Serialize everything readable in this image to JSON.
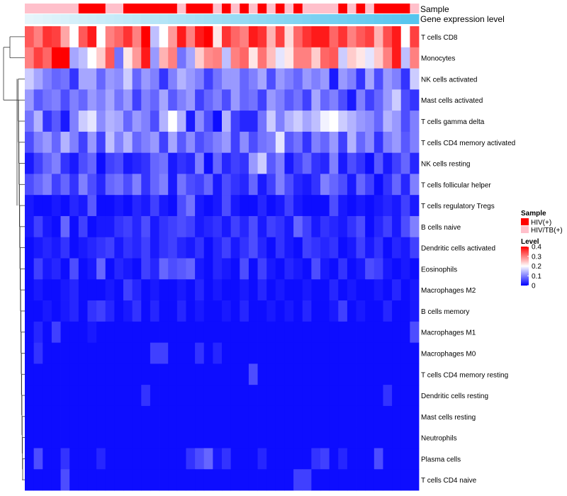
{
  "chart_data": {
    "type": "heatmap",
    "title": "",
    "xlabel": "",
    "ylabel": "",
    "annotation_tracks": [
      {
        "label": "Sample",
        "type": "categorical"
      },
      {
        "label": "Gene expression level",
        "type": "continuous"
      }
    ],
    "sample_groups": [
      "HIV/TB(+)",
      "HIV/TB(+)",
      "HIV/TB(+)",
      "HIV/TB(+)",
      "HIV/TB(+)",
      "HIV/TB(+)",
      "HIV(+)",
      "HIV(+)",
      "HIV(+)",
      "HIV/TB(+)",
      "HIV/TB(+)",
      "HIV(+)",
      "HIV(+)",
      "HIV(+)",
      "HIV(+)",
      "HIV(+)",
      "HIV(+)",
      "HIV/TB(+)",
      "HIV(+)",
      "HIV(+)",
      "HIV(+)",
      "HIV/TB(+)",
      "HIV(+)",
      "HIV/TB(+)",
      "HIV(+)",
      "HIV/TB(+)",
      "HIV(+)",
      "HIV/TB(+)",
      "HIV(+)",
      "HIV/TB(+)",
      "HIV(+)",
      "HIV/TB(+)",
      "HIV/TB(+)",
      "HIV/TB(+)",
      "HIV/TB(+)",
      "HIV(+)",
      "HIV/TB(+)",
      "HIV(+)",
      "HIV/TB(+)",
      "HIV(+)",
      "HIV(+)",
      "HIV(+)",
      "HIV(+)",
      "HIV/TB(+)"
    ],
    "rows": [
      "T cells CD8",
      "Monocytes",
      "NK cells activated",
      "Mast cells activated",
      "T cells gamma delta",
      "T cells CD4 memory activated",
      "NK cells resting",
      "T cells follicular helper",
      "T cells regulatory  Tregs",
      "B cells naive",
      "Dendritic cells activated",
      "Eosinophils",
      "Macrophages M2",
      "B cells memory",
      "Macrophages M1",
      "Macrophages M0",
      "T cells CD4 memory resting",
      "Dendritic cells resting",
      "Mast cells resting",
      "Neutrophils",
      "Plasma cells",
      "T cells CD4 naive"
    ],
    "values": [
      [
        0.33,
        0.3,
        0.36,
        0.35,
        0.27,
        0.2,
        0.33,
        0.38,
        0.2,
        0.3,
        0.32,
        0.36,
        0.3,
        0.4,
        0.15,
        0.2,
        0.28,
        0.38,
        0.3,
        0.38,
        0.4,
        0.22,
        0.36,
        0.32,
        0.3,
        0.38,
        0.36,
        0.26,
        0.35,
        0.23,
        0.32,
        0.36,
        0.38,
        0.38,
        0.32,
        0.36,
        0.3,
        0.33,
        0.35,
        0.26,
        0.34,
        0.38,
        0.2,
        0.35
      ],
      [
        0.3,
        0.35,
        0.32,
        0.4,
        0.4,
        0.13,
        0.15,
        0.2,
        0.24,
        0.33,
        0.09,
        0.22,
        0.28,
        0.38,
        0.12,
        0.26,
        0.3,
        0.09,
        0.13,
        0.24,
        0.29,
        0.3,
        0.15,
        0.3,
        0.32,
        0.22,
        0.31,
        0.25,
        0.18,
        0.22,
        0.3,
        0.3,
        0.24,
        0.32,
        0.33,
        0.16,
        0.24,
        0.22,
        0.18,
        0.24,
        0.3,
        0.38,
        0.15,
        0.3
      ],
      [
        0.16,
        0.13,
        0.1,
        0.08,
        0.09,
        0.04,
        0.13,
        0.13,
        0.08,
        0.12,
        0.11,
        0.16,
        0.08,
        0.12,
        0.1,
        0.04,
        0.1,
        0.14,
        0.12,
        0.1,
        0.05,
        0.09,
        0.12,
        0.12,
        0.08,
        0.1,
        0.13,
        0.06,
        0.12,
        0.1,
        0.08,
        0.12,
        0.1,
        0.12,
        0.02,
        0.12,
        0.1,
        0.04,
        0.13,
        0.06,
        0.12,
        0.1,
        0.04,
        0.16
      ],
      [
        0.12,
        0.07,
        0.09,
        0.1,
        0.06,
        0.1,
        0.08,
        0.12,
        0.1,
        0.13,
        0.09,
        0.12,
        0.05,
        0.1,
        0.08,
        0.13,
        0.07,
        0.1,
        0.12,
        0.05,
        0.08,
        0.1,
        0.06,
        0.12,
        0.08,
        0.09,
        0.05,
        0.12,
        0.1,
        0.07,
        0.09,
        0.05,
        0.13,
        0.08,
        0.1,
        0.06,
        0.02,
        0.1,
        0.05,
        0.08,
        0.12,
        0.16,
        0.06,
        0.04
      ],
      [
        0.09,
        0.14,
        0.04,
        0.07,
        0.02,
        0.1,
        0.16,
        0.18,
        0.11,
        0.14,
        0.13,
        0.08,
        0.12,
        0.1,
        0.06,
        0.14,
        0.2,
        0.14,
        0.02,
        0.11,
        0.06,
        0.01,
        0.14,
        0.05,
        0.03,
        0.03,
        0.09,
        0.16,
        0.1,
        0.14,
        0.16,
        0.13,
        0.15,
        0.19,
        0.2,
        0.16,
        0.14,
        0.12,
        0.11,
        0.08,
        0.14,
        0.12,
        0.06,
        0.1
      ],
      [
        0.06,
        0.1,
        0.12,
        0.08,
        0.14,
        0.1,
        0.05,
        0.12,
        0.05,
        0.15,
        0.1,
        0.14,
        0.08,
        0.1,
        0.12,
        0.05,
        0.13,
        0.07,
        0.11,
        0.06,
        0.08,
        0.1,
        0.12,
        0.05,
        0.11,
        0.06,
        0.09,
        0.1,
        0.18,
        0.07,
        0.09,
        0.04,
        0.1,
        0.08,
        0.12,
        0.05,
        0.14,
        0.08,
        0.11,
        0.04,
        0.1,
        0.12,
        0.07,
        0.1
      ],
      [
        0.02,
        0.05,
        0.08,
        0.1,
        0.04,
        0.02,
        0.06,
        0.08,
        0.01,
        0.05,
        0.06,
        0.02,
        0.03,
        0.04,
        0.08,
        0.09,
        0.02,
        0.04,
        0.03,
        0.1,
        0.01,
        0.08,
        0.03,
        0.05,
        0.04,
        0.12,
        0.16,
        0.07,
        0.1,
        0.02,
        0.05,
        0.08,
        0.04,
        0.03,
        0.1,
        0.02,
        0.06,
        0.04,
        0.01,
        0.07,
        0.02,
        0.05,
        0.08,
        0.03
      ],
      [
        0.06,
        0.08,
        0.1,
        0.05,
        0.08,
        0.04,
        0.1,
        0.06,
        0.03,
        0.08,
        0.09,
        0.06,
        0.1,
        0.04,
        0.08,
        0.1,
        0.02,
        0.09,
        0.06,
        0.05,
        0.08,
        0.02,
        0.06,
        0.04,
        0.03,
        0.08,
        0.02,
        0.05,
        0.1,
        0.06,
        0.03,
        0.02,
        0.04,
        0.1,
        0.08,
        0.06,
        0.02,
        0.08,
        0.05,
        0.01,
        0.04,
        0.08,
        0.03,
        0.1
      ],
      [
        0.02,
        0.01,
        0.01,
        0.02,
        0.01,
        0.03,
        0.02,
        0.07,
        0.01,
        0.01,
        0.02,
        0.01,
        0.03,
        0.02,
        0.05,
        0.02,
        0.01,
        0.06,
        0.09,
        0.02,
        0.01,
        0.02,
        0.06,
        0.02,
        0.01,
        0.01,
        0.03,
        0.01,
        0.02,
        0.05,
        0.02,
        0.01,
        0.01,
        0.01,
        0.06,
        0.02,
        0.01,
        0.02,
        0.01,
        0.02,
        0.03,
        0.02,
        0.05,
        0.02
      ],
      [
        0.02,
        0.05,
        0.02,
        0.01,
        0.08,
        0.01,
        0.05,
        0.01,
        0.02,
        0.02,
        0.04,
        0.05,
        0.03,
        0.06,
        0.02,
        0.04,
        0.05,
        0.06,
        0.05,
        0.02,
        0.03,
        0.04,
        0.02,
        0.05,
        0.03,
        0.06,
        0.02,
        0.05,
        0.04,
        0.02,
        0.08,
        0.05,
        0.02,
        0.04,
        0.03,
        0.02,
        0.04,
        0.06,
        0.01,
        0.03,
        0.05,
        0.02,
        0.06,
        0.1
      ],
      [
        0.01,
        0.02,
        0.03,
        0.02,
        0.04,
        0.01,
        0.02,
        0.03,
        0.04,
        0.05,
        0.02,
        0.04,
        0.03,
        0.05,
        0.02,
        0.04,
        0.05,
        0.03,
        0.02,
        0.04,
        0.01,
        0.03,
        0.05,
        0.02,
        0.04,
        0.06,
        0.03,
        0.01,
        0.04,
        0.02,
        0.01,
        0.05,
        0.04,
        0.03,
        0.04,
        0.01,
        0.02,
        0.05,
        0.02,
        0.04,
        0.01,
        0.03,
        0.02,
        0.05
      ],
      [
        0.01,
        0.05,
        0.02,
        0.03,
        0.01,
        0.06,
        0.01,
        0.02,
        0.08,
        0.01,
        0.03,
        0.02,
        0.01,
        0.05,
        0.03,
        0.08,
        0.06,
        0.07,
        0.08,
        0.02,
        0.01,
        0.03,
        0.02,
        0.01,
        0.06,
        0.01,
        0.05,
        0.02,
        0.01,
        0.03,
        0.02,
        0.01,
        0.06,
        0.02,
        0.01,
        0.04,
        0.01,
        0.02,
        0.06,
        0.05,
        0.02,
        0.01,
        0.02,
        0.01
      ],
      [
        0.01,
        0.02,
        0.01,
        0.01,
        0.02,
        0.03,
        0.01,
        0.01,
        0.01,
        0.02,
        0.01,
        0.05,
        0.03,
        0.01,
        0.02,
        0.01,
        0.01,
        0.02,
        0.01,
        0.03,
        0.01,
        0.02,
        0.01,
        0.01,
        0.02,
        0.01,
        0.03,
        0.01,
        0.02,
        0.01,
        0.01,
        0.02,
        0.01,
        0.01,
        0.03,
        0.01,
        0.02,
        0.01,
        0.01,
        0.02,
        0.01,
        0.03,
        0.01,
        0.02
      ],
      [
        0.01,
        0.01,
        0.02,
        0.01,
        0.02,
        0.03,
        0.01,
        0.04,
        0.05,
        0.03,
        0.01,
        0.02,
        0.04,
        0.01,
        0.03,
        0.01,
        0.01,
        0.03,
        0.01,
        0.02,
        0.01,
        0.01,
        0.02,
        0.01,
        0.03,
        0.01,
        0.01,
        0.02,
        0.01,
        0.02,
        0.01,
        0.03,
        0.01,
        0.01,
        0.02,
        0.05,
        0.01,
        0.02,
        0.01,
        0.01,
        0.03,
        0.01,
        0.01,
        0.02
      ],
      [
        0.01,
        0.03,
        0.01,
        0.05,
        0.01,
        0.01,
        0.01,
        0.02,
        0.01,
        0.01,
        0.01,
        0.01,
        0.01,
        0.01,
        0.01,
        0.01,
        0.01,
        0.01,
        0.01,
        0.01,
        0.01,
        0.01,
        0.01,
        0.01,
        0.01,
        0.01,
        0.01,
        0.01,
        0.01,
        0.01,
        0.01,
        0.01,
        0.01,
        0.01,
        0.01,
        0.01,
        0.01,
        0.01,
        0.01,
        0.01,
        0.01,
        0.01,
        0.01,
        0.06
      ],
      [
        0.01,
        0.04,
        0.01,
        0.01,
        0.01,
        0.01,
        0.01,
        0.01,
        0.01,
        0.01,
        0.01,
        0.01,
        0.01,
        0.01,
        0.05,
        0.05,
        0.01,
        0.01,
        0.01,
        0.04,
        0.01,
        0.03,
        0.01,
        0.01,
        0.01,
        0.01,
        0.01,
        0.01,
        0.01,
        0.01,
        0.01,
        0.01,
        0.01,
        0.01,
        0.01,
        0.01,
        0.01,
        0.01,
        0.01,
        0.01,
        0.01,
        0.01,
        0.01,
        0.01
      ],
      [
        0.01,
        0.01,
        0.01,
        0.01,
        0.01,
        0.01,
        0.01,
        0.01,
        0.01,
        0.01,
        0.01,
        0.01,
        0.01,
        0.01,
        0.01,
        0.01,
        0.01,
        0.01,
        0.01,
        0.01,
        0.01,
        0.01,
        0.01,
        0.01,
        0.01,
        0.06,
        0.01,
        0.01,
        0.01,
        0.01,
        0.01,
        0.01,
        0.01,
        0.01,
        0.01,
        0.01,
        0.01,
        0.01,
        0.01,
        0.01,
        0.01,
        0.01,
        0.01,
        0.01
      ],
      [
        0.01,
        0.01,
        0.01,
        0.01,
        0.01,
        0.01,
        0.01,
        0.01,
        0.01,
        0.01,
        0.01,
        0.01,
        0.01,
        0.04,
        0.01,
        0.01,
        0.01,
        0.01,
        0.01,
        0.01,
        0.01,
        0.01,
        0.01,
        0.01,
        0.01,
        0.01,
        0.01,
        0.01,
        0.01,
        0.01,
        0.01,
        0.01,
        0.01,
        0.01,
        0.01,
        0.01,
        0.01,
        0.01,
        0.01,
        0.01,
        0.04,
        0.01,
        0.01,
        0.01
      ],
      [
        0.01,
        0.01,
        0.01,
        0.01,
        0.01,
        0.01,
        0.01,
        0.01,
        0.01,
        0.01,
        0.01,
        0.01,
        0.01,
        0.01,
        0.01,
        0.01,
        0.01,
        0.01,
        0.01,
        0.01,
        0.01,
        0.01,
        0.01,
        0.01,
        0.01,
        0.01,
        0.01,
        0.01,
        0.01,
        0.01,
        0.01,
        0.01,
        0.01,
        0.01,
        0.01,
        0.01,
        0.01,
        0.01,
        0.01,
        0.01,
        0.01,
        0.01,
        0.01,
        0.01
      ],
      [
        0.01,
        0.01,
        0.01,
        0.01,
        0.01,
        0.01,
        0.01,
        0.01,
        0.01,
        0.01,
        0.01,
        0.01,
        0.01,
        0.01,
        0.01,
        0.01,
        0.01,
        0.01,
        0.01,
        0.01,
        0.01,
        0.01,
        0.01,
        0.01,
        0.01,
        0.01,
        0.01,
        0.01,
        0.01,
        0.01,
        0.01,
        0.01,
        0.01,
        0.01,
        0.01,
        0.01,
        0.01,
        0.01,
        0.01,
        0.01,
        0.01,
        0.01,
        0.01,
        0.01
      ],
      [
        0.01,
        0.06,
        0.01,
        0.01,
        0.04,
        0.01,
        0.01,
        0.01,
        0.03,
        0.01,
        0.01,
        0.01,
        0.01,
        0.01,
        0.01,
        0.01,
        0.01,
        0.01,
        0.04,
        0.06,
        0.08,
        0.02,
        0.04,
        0.01,
        0.01,
        0.01,
        0.03,
        0.01,
        0.01,
        0.01,
        0.01,
        0.01,
        0.04,
        0.05,
        0.01,
        0.03,
        0.01,
        0.01,
        0.01,
        0.06,
        0.01,
        0.01,
        0.01,
        0.01
      ],
      [
        0.01,
        0.01,
        0.01,
        0.01,
        0.06,
        0.01,
        0.01,
        0.01,
        0.01,
        0.01,
        0.01,
        0.01,
        0.01,
        0.01,
        0.01,
        0.01,
        0.01,
        0.01,
        0.01,
        0.01,
        0.01,
        0.01,
        0.01,
        0.01,
        0.01,
        0.01,
        0.01,
        0.01,
        0.01,
        0.01,
        0.05,
        0.05,
        0.01,
        0.01,
        0.01,
        0.01,
        0.01,
        0.01,
        0.01,
        0.01,
        0.01,
        0.01,
        0.01,
        0.01
      ]
    ],
    "legend": {
      "sample": {
        "title": "Sample",
        "entries": [
          {
            "label": "HIV(+)",
            "color": "#ff0000"
          },
          {
            "label": "HIV/TB(+)",
            "color": "#ffc0cb"
          }
        ]
      },
      "level": {
        "title": "Level",
        "range": [
          0,
          0.4
        ],
        "ticks": [
          "0.4",
          "0.3",
          "0.2",
          "0.1",
          "0"
        ]
      }
    },
    "colors": {
      "low": "#0000ff",
      "mid": "#ffffff",
      "high": "#ff0000",
      "expr_low": "#e6f5fb",
      "expr_high": "#56c5ee"
    }
  }
}
